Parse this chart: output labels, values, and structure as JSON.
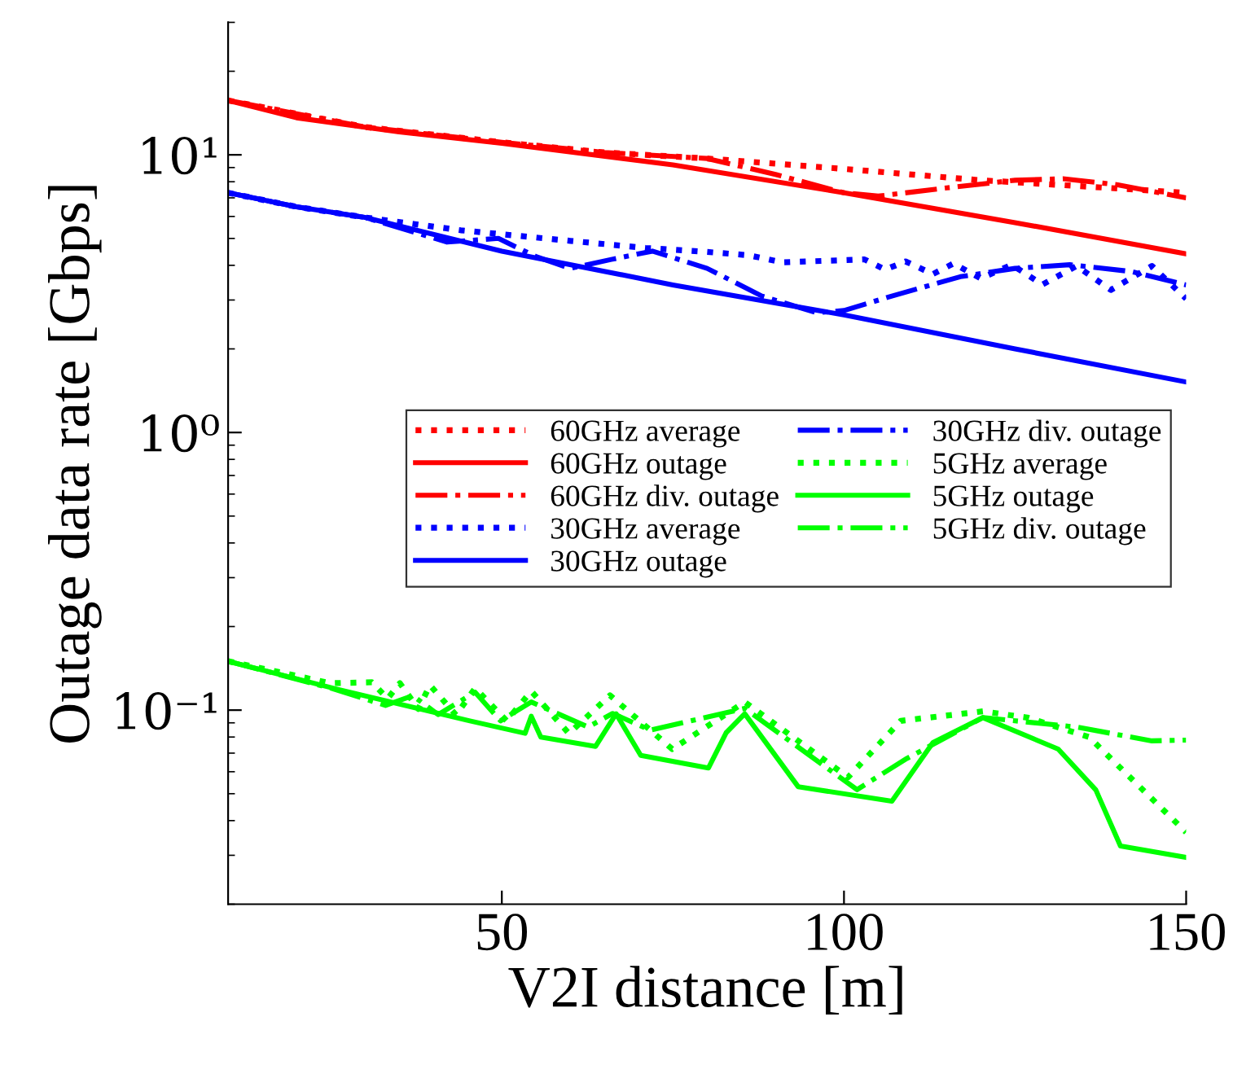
{
  "chart_data": {
    "type": "line",
    "xlabel": "V2I distance [m]",
    "ylabel": "Outage data rate [Gbps]",
    "log": "y",
    "grid": false,
    "legend": "center right",
    "xlim": [
      10,
      150
    ],
    "xticks": [
      50,
      100,
      150
    ],
    "ylim": [
      0.02,
      30
    ],
    "yticks": [
      {
        "value": 0.1,
        "label": "10⁻¹"
      },
      {
        "value": 1,
        "label": "10⁰"
      },
      {
        "value": 10,
        "label": "10¹"
      }
    ],
    "series": [
      {
        "name": "60GHz average",
        "color": "#ff0000",
        "line_style": "dotted",
        "x": [
          10,
          30,
          50,
          65,
          80,
          100,
          120,
          135,
          150
        ],
        "values": [
          15.7,
          12.6,
          11.1,
          10.2,
          9.7,
          8.9,
          8.1,
          7.7,
          7.3
        ]
      },
      {
        "name": "60GHz outage",
        "color": "#ff0000",
        "line_style": "solid",
        "x": [
          10,
          20,
          35,
          50,
          75,
          100,
          125,
          150
        ],
        "values": [
          15.7,
          13.6,
          12.1,
          11.0,
          9.2,
          7.3,
          5.7,
          4.4
        ]
      },
      {
        "name": "60GHz div. outage",
        "color": "#ff0000",
        "line_style": "dashdot",
        "x": [
          10,
          30,
          50,
          65,
          80,
          90,
          100,
          105,
          115,
          125,
          132,
          140,
          150
        ],
        "values": [
          15.7,
          12.6,
          11.1,
          10.2,
          9.7,
          8.5,
          7.3,
          7.1,
          7.6,
          8.1,
          8.2,
          7.8,
          7.0
        ]
      },
      {
        "name": "30GHz average",
        "color": "#0000ff",
        "line_style": "dotted",
        "x": [
          10,
          20,
          30,
          44,
          60,
          71,
          80,
          86,
          91,
          97,
          103,
          106,
          109,
          113,
          116,
          120,
          124.5,
          129,
          134,
          139,
          145,
          150
        ],
        "values": [
          7.3,
          6.5,
          5.95,
          5.35,
          4.9,
          4.62,
          4.47,
          4.35,
          4.1,
          4.15,
          4.2,
          3.86,
          4.13,
          3.72,
          4.06,
          3.59,
          4.02,
          3.41,
          3.98,
          3.26,
          3.98,
          3.03
        ]
      },
      {
        "name": "30GHz outage",
        "color": "#0000ff",
        "line_style": "solid",
        "x": [
          10,
          20,
          30,
          50,
          75,
          100,
          125,
          150
        ],
        "values": [
          7.3,
          6.5,
          5.95,
          4.5,
          3.4,
          2.65,
          2.0,
          1.52
        ]
      },
      {
        "name": "30GHz div. outage",
        "color": "#0000ff",
        "line_style": "dashdot",
        "x": [
          10,
          20,
          30,
          42,
          49.5,
          55,
          60,
          66,
          72,
          80,
          88,
          96,
          100,
          107,
          117,
          125,
          133,
          142,
          150
        ],
        "values": [
          7.3,
          6.5,
          5.95,
          4.85,
          5.0,
          4.3,
          3.9,
          4.2,
          4.5,
          3.9,
          3.1,
          2.7,
          2.75,
          3.1,
          3.64,
          3.9,
          4.02,
          3.8,
          3.4
        ]
      },
      {
        "name": "5GHz average",
        "color": "#00ff00",
        "line_style": "dotted",
        "x": [
          10,
          25,
          31,
          33.3,
          35.1,
          37.8,
          39.5,
          43.3,
          46.1,
          50.7,
          54.3,
          59.8,
          65.8,
          74.9,
          85.5,
          100.6,
          108.3,
          120.3,
          126.8,
          135.8,
          150
        ],
        "values": [
          0.15,
          0.125,
          0.126,
          0.11,
          0.125,
          0.101,
          0.123,
          0.096,
          0.12,
          0.0915,
          0.117,
          0.0824,
          0.113,
          0.0724,
          0.107,
          0.0573,
          0.0915,
          0.099,
          0.094,
          0.08,
          0.0363
        ]
      },
      {
        "name": "5GHz outage",
        "color": "#00ff00",
        "line_style": "solid",
        "x": [
          10,
          25.9,
          45.2,
          53.4,
          54.3,
          55.7,
          63.7,
          66.7,
          70.3,
          80.2,
          82.8,
          85.5,
          93.3,
          107,
          113,
          120.3,
          131.3,
          136.8,
          140.4,
          150
        ],
        "values": [
          0.15,
          0.119,
          0.0916,
          0.0825,
          0.095,
          0.08,
          0.074,
          0.097,
          0.0687,
          0.0619,
          0.083,
          0.097,
          0.053,
          0.047,
          0.0764,
          0.094,
          0.0724,
          0.0516,
          0.0324,
          0.0295
        ]
      },
      {
        "name": "5GHz div. outage",
        "color": "#00ff00",
        "line_style": "dashdot",
        "x": [
          10,
          25,
          33,
          37,
          40.7,
          46.1,
          49.8,
          54.3,
          62.6,
          66.2,
          71.7,
          85.5,
          101.9,
          109.2,
          120.3,
          134,
          145,
          150
        ],
        "values": [
          0.15,
          0.12,
          0.104,
          0.1127,
          0.0964,
          0.116,
          0.0915,
          0.107,
          0.0869,
          0.0973,
          0.0847,
          0.1014,
          0.0517,
          0.067,
          0.094,
          0.0869,
          0.0775,
          0.078
        ]
      }
    ]
  }
}
